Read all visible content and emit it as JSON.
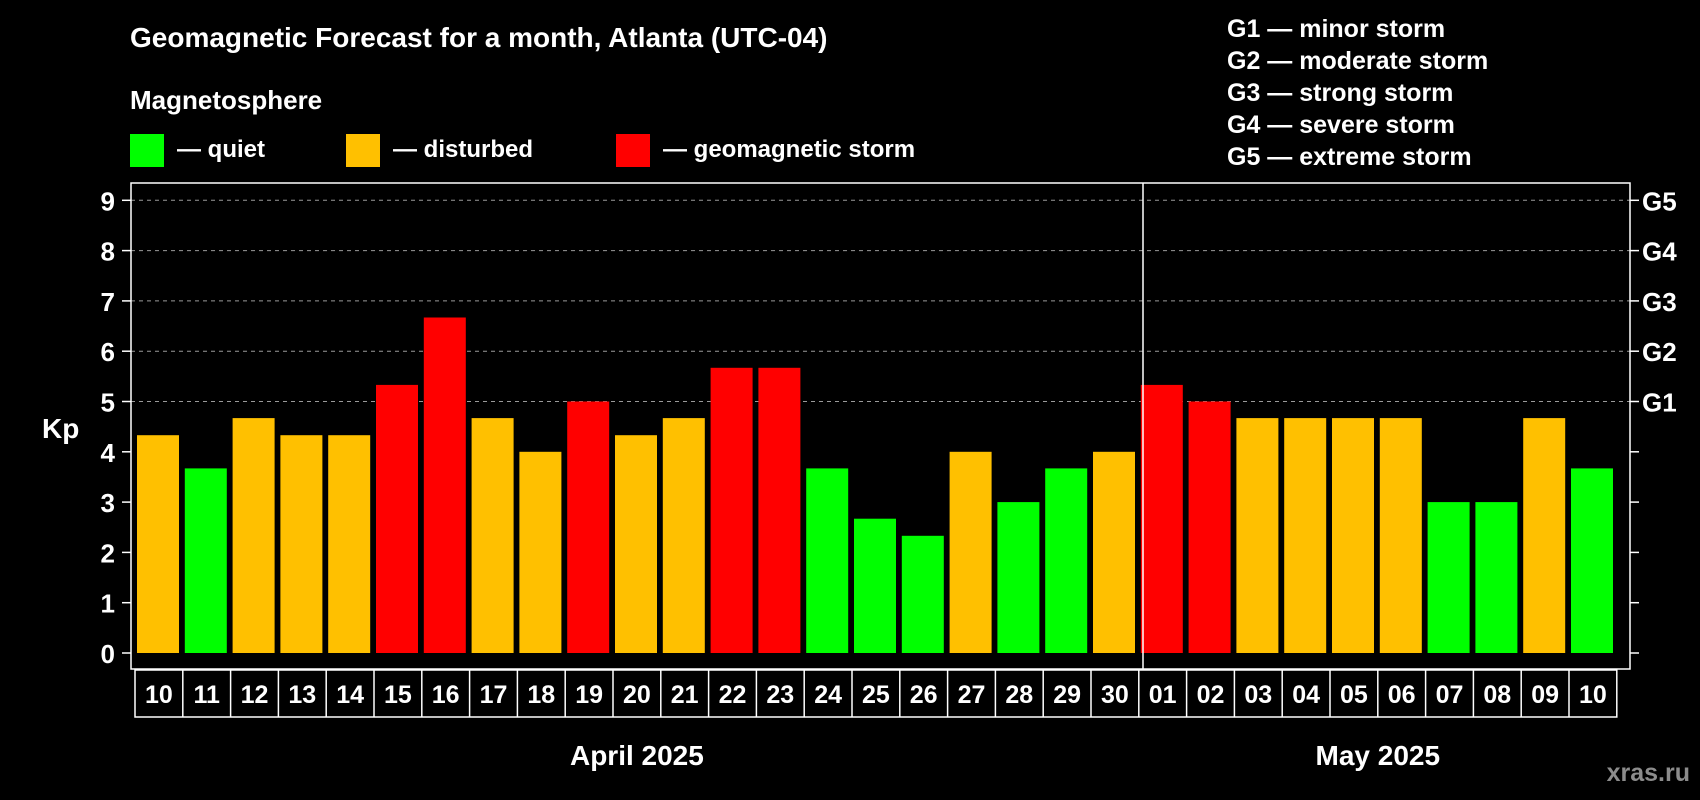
{
  "title": "Geomagnetic Forecast for a month, Atlanta (UTC-04)",
  "legend": {
    "heading": "Magnetosphere",
    "items": [
      {
        "label": "— quiet",
        "color": "#00ff00"
      },
      {
        "label": "— disturbed",
        "color": "#ffc000"
      },
      {
        "label": "— geomagnetic storm",
        "color": "#ff0000"
      }
    ]
  },
  "storm_scale": [
    "G1 — minor storm",
    "G2 — moderate storm",
    "G3 — strong storm",
    "G4 — severe storm",
    "G5 — extreme storm"
  ],
  "watermark": "xras.ru",
  "chart_data": {
    "type": "bar",
    "title": "Geomagnetic Forecast for a month, Atlanta (UTC-04)",
    "ylabel": "Kp",
    "ylim": [
      0,
      9
    ],
    "y_ticks": [
      "0",
      "1",
      "2",
      "3",
      "4",
      "5",
      "6",
      "7",
      "8",
      "9"
    ],
    "right_axis_labels": [
      {
        "value": 5,
        "label": "G1"
      },
      {
        "value": 6,
        "label": "G2"
      },
      {
        "value": 7,
        "label": "G3"
      },
      {
        "value": 8,
        "label": "G4"
      },
      {
        "value": 9,
        "label": "G5"
      }
    ],
    "months": [
      {
        "label": "April 2025",
        "start_index": 0,
        "end_index": 20
      },
      {
        "label": "May 2025",
        "start_index": 21,
        "end_index": 30
      }
    ],
    "categories": [
      "10",
      "11",
      "12",
      "13",
      "14",
      "15",
      "16",
      "17",
      "18",
      "19",
      "20",
      "21",
      "22",
      "23",
      "24",
      "25",
      "26",
      "27",
      "28",
      "29",
      "30",
      "01",
      "02",
      "03",
      "04",
      "05",
      "06",
      "07",
      "08",
      "09",
      "10"
    ],
    "values": [
      4.33,
      3.67,
      4.67,
      4.33,
      4.33,
      5.33,
      6.67,
      4.67,
      4.0,
      5.0,
      4.33,
      4.67,
      5.67,
      5.67,
      3.67,
      2.67,
      2.33,
      4.0,
      3.0,
      3.67,
      4.0,
      5.33,
      5.0,
      4.67,
      4.67,
      4.67,
      4.67,
      3.0,
      3.0,
      4.67,
      3.67
    ],
    "levels": [
      "disturbed",
      "quiet",
      "disturbed",
      "disturbed",
      "disturbed",
      "storm",
      "storm",
      "disturbed",
      "disturbed",
      "storm",
      "disturbed",
      "disturbed",
      "storm",
      "storm",
      "quiet",
      "quiet",
      "quiet",
      "disturbed",
      "quiet",
      "quiet",
      "disturbed",
      "storm",
      "storm",
      "disturbed",
      "disturbed",
      "disturbed",
      "disturbed",
      "quiet",
      "quiet",
      "disturbed",
      "quiet"
    ],
    "colors": {
      "quiet": "#00ff00",
      "disturbed": "#ffc000",
      "storm": "#ff0000"
    }
  }
}
